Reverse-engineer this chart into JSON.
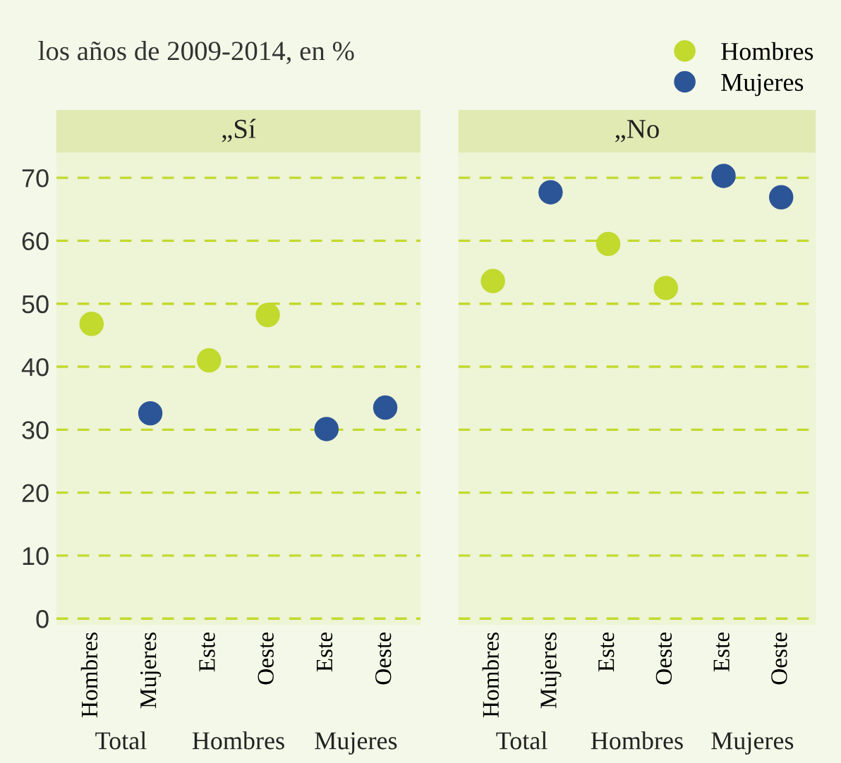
{
  "chart_data": [
    {
      "type": "scatter",
      "title": "„Sí",
      "subtitle": "los años de 2009-2014, en %",
      "categories": [
        "Hombres",
        "Mujeres",
        "Este",
        "Oeste",
        "Este",
        "Oeste"
      ],
      "series": [
        {
          "name": "Hombres",
          "color": "#c2d92e",
          "values": [
            46.8,
            null,
            41,
            48.2,
            null,
            null
          ]
        },
        {
          "name": "Mujeres",
          "color": "#2c5597",
          "values": [
            null,
            32.6,
            null,
            null,
            30.1,
            33.5
          ]
        }
      ],
      "annotations": [
        "Total",
        "Hombres",
        "Mujeres"
      ],
      "ylim": [
        -1,
        74
      ],
      "yticks": [
        0,
        10,
        20,
        30,
        40,
        50,
        60,
        70
      ],
      "grid": "y",
      "legend": "top right",
      "marker": "circle"
    },
    {
      "type": "scatter",
      "title": "„No",
      "categories": [
        "Hombres",
        "Mujeres",
        "Este",
        "Oeste",
        "Este",
        "Oeste"
      ],
      "series": [
        {
          "color": "#c2d92e",
          "values": [
            53.6,
            null,
            59.5,
            52.5,
            null,
            null
          ]
        },
        {
          "color": "#2c5597",
          "values": [
            null,
            67.7,
            null,
            null,
            70.3,
            66.9
          ]
        }
      ],
      "annotations": [
        "Total",
        "Hombres",
        "Mujeres"
      ],
      "ylim": [
        -1,
        74
      ],
      "yticks": [
        0,
        10,
        20,
        30,
        40,
        50,
        60,
        70
      ],
      "grid": "y",
      "tick_labels": "x",
      "marker": "circle"
    }
  ]
}
